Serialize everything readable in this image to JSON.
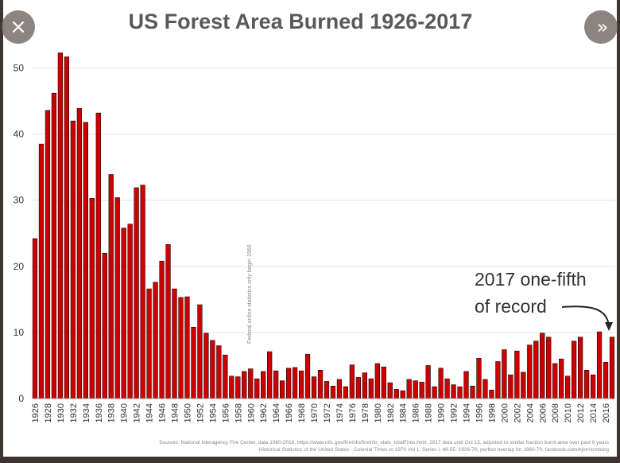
{
  "nav": {
    "close_icon": "×",
    "next_icon": "»"
  },
  "chart_data": {
    "type": "bar",
    "title": "US Forest Area Burned 1926-2017",
    "xlabel": "",
    "ylabel": "",
    "ylim": [
      0,
      55
    ],
    "yticks": [
      0,
      10,
      20,
      30,
      40,
      50
    ],
    "grid": true,
    "bar_color": "#cc0000",
    "bar_edge_color": "#000000",
    "x": [
      1926,
      1927,
      1928,
      1929,
      1930,
      1931,
      1932,
      1933,
      1934,
      1935,
      1936,
      1937,
      1938,
      1939,
      1940,
      1941,
      1942,
      1943,
      1944,
      1945,
      1946,
      1947,
      1948,
      1949,
      1950,
      1951,
      1952,
      1953,
      1954,
      1955,
      1956,
      1957,
      1958,
      1959,
      1960,
      1961,
      1962,
      1963,
      1964,
      1965,
      1966,
      1967,
      1968,
      1969,
      1970,
      1971,
      1972,
      1973,
      1974,
      1975,
      1976,
      1977,
      1978,
      1979,
      1980,
      1981,
      1982,
      1983,
      1984,
      1985,
      1986,
      1987,
      1988,
      1989,
      1990,
      1991,
      1992,
      1993,
      1994,
      1995,
      1996,
      1997,
      1998,
      1999,
      2000,
      2001,
      2002,
      2003,
      2004,
      2005,
      2006,
      2007,
      2008,
      2009,
      2010,
      2011,
      2012,
      2013,
      2014,
      2015,
      2016,
      2017
    ],
    "values": [
      24.2,
      38.5,
      43.6,
      46.2,
      52.3,
      51.7,
      42.0,
      43.9,
      41.8,
      30.3,
      43.2,
      22.0,
      33.9,
      30.4,
      25.8,
      26.4,
      31.9,
      32.3,
      16.6,
      17.6,
      20.8,
      23.3,
      16.6,
      15.3,
      15.4,
      10.8,
      14.2,
      9.9,
      8.8,
      8.0,
      6.6,
      3.4,
      3.3,
      4.1,
      4.5,
      3.0,
      4.1,
      7.1,
      4.2,
      2.7,
      4.6,
      4.7,
      4.2,
      6.7,
      3.3,
      4.3,
      2.6,
      1.9,
      2.9,
      1.8,
      5.1,
      3.2,
      3.9,
      3.0,
      5.3,
      4.8,
      2.4,
      1.4,
      1.2,
      2.9,
      2.7,
      2.5,
      5.0,
      1.8,
      4.6,
      3.0,
      2.1,
      1.8,
      4.1,
      1.9,
      6.1,
      2.9,
      1.3,
      5.6,
      7.4,
      3.6,
      7.2,
      4.0,
      8.1,
      8.7,
      9.9,
      9.3,
      5.3,
      6.0,
      3.4,
      8.7,
      9.3,
      4.3,
      3.6,
      10.1,
      5.5,
      9.3
    ],
    "tick_labels": [
      "1926",
      "1928",
      "1930",
      "1932",
      "1934",
      "1936",
      "1938",
      "1940",
      "1942",
      "1944",
      "1946",
      "1948",
      "1950",
      "1952",
      "1954",
      "1956",
      "1958",
      "1960",
      "1962",
      "1964",
      "1966",
      "1968",
      "1970",
      "1972",
      "1974",
      "1976",
      "1978",
      "1980",
      "1982",
      "1984",
      "1986",
      "1988",
      "1990",
      "1992",
      "1994",
      "1996",
      "1998",
      "2000",
      "2002",
      "2004",
      "2006",
      "2008",
      "2010",
      "2012",
      "2014",
      "2016"
    ],
    "annotation_line1": "2017 one-fifth",
    "annotation_line2": "of record",
    "vertical_note": "Federal online statistics only begin 1960",
    "source_line1": "Sources: National Interagency Fire Center, data 1960-2016, https://www.nifc.gov/fireInfo/fireInfo_stats_totalFires.html, 2017 data until Oct 13, adjusted to similar fraction burnt area over past 9 years",
    "source_line2": "Historical Statistics of the United States - Colonial Times to 1970 Vol 1, Series L 48-55, 1926-70, perfect overlap for 1960-70, facebook.com/bjornlomborg"
  }
}
